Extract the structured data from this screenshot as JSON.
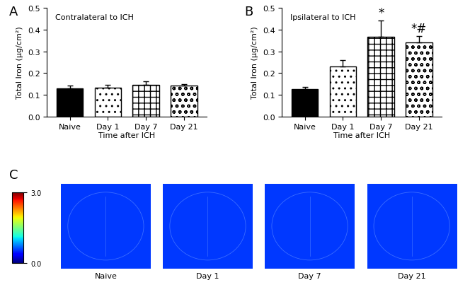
{
  "chart_data": [
    {
      "type": "bar",
      "panel": "A",
      "title": "Contralateral to ICH",
      "categories": [
        "Naive",
        "Day 1",
        "Day 7",
        "Day 21"
      ],
      "values": [
        0.13,
        0.132,
        0.147,
        0.142
      ],
      "errors": [
        0.011,
        0.012,
        0.015,
        0.008
      ],
      "colors": [
        "#000000",
        "#ffffff",
        "#ffffff",
        "#ffffff"
      ],
      "x_label": "Time after ICH",
      "y_label": "Total Iron (µg/cm²)",
      "ylim": [
        0,
        0.5
      ],
      "yticks": [
        0.0,
        0.1,
        0.2,
        0.3,
        0.4,
        0.5
      ]
    },
    {
      "type": "bar",
      "panel": "B",
      "title": "Ipsilateral to ICH",
      "categories": [
        "Naive",
        "Day 1",
        "Day 7",
        "Day 21"
      ],
      "values": [
        0.125,
        0.23,
        0.368,
        0.342
      ],
      "errors": [
        0.011,
        0.03,
        0.075,
        0.03
      ],
      "colors": [
        "#000000",
        "#ffffff",
        "#ffffff",
        "#ffffff"
      ],
      "annotations": [
        {
          "category": "Day 7",
          "text": "*"
        },
        {
          "category": "Day 21",
          "text": "*#"
        }
      ],
      "x_label": "Time after ICH",
      "y_label": "Total Iron (µg/cm²)",
      "ylim": [
        0,
        0.5
      ],
      "yticks": [
        0.0,
        0.1,
        0.2,
        0.3,
        0.4,
        0.5
      ]
    },
    {
      "type": "image",
      "panel": "C",
      "categories": [
        "Naive",
        "Day 1",
        "Day 7",
        "Day 21"
      ],
      "colorbar_range": [
        0.0,
        3.0
      ],
      "colorbar_ticks": [
        {
          "value": 0.0,
          "label": "0.0"
        },
        {
          "value": 3.0,
          "label": "3.0"
        }
      ]
    }
  ]
}
